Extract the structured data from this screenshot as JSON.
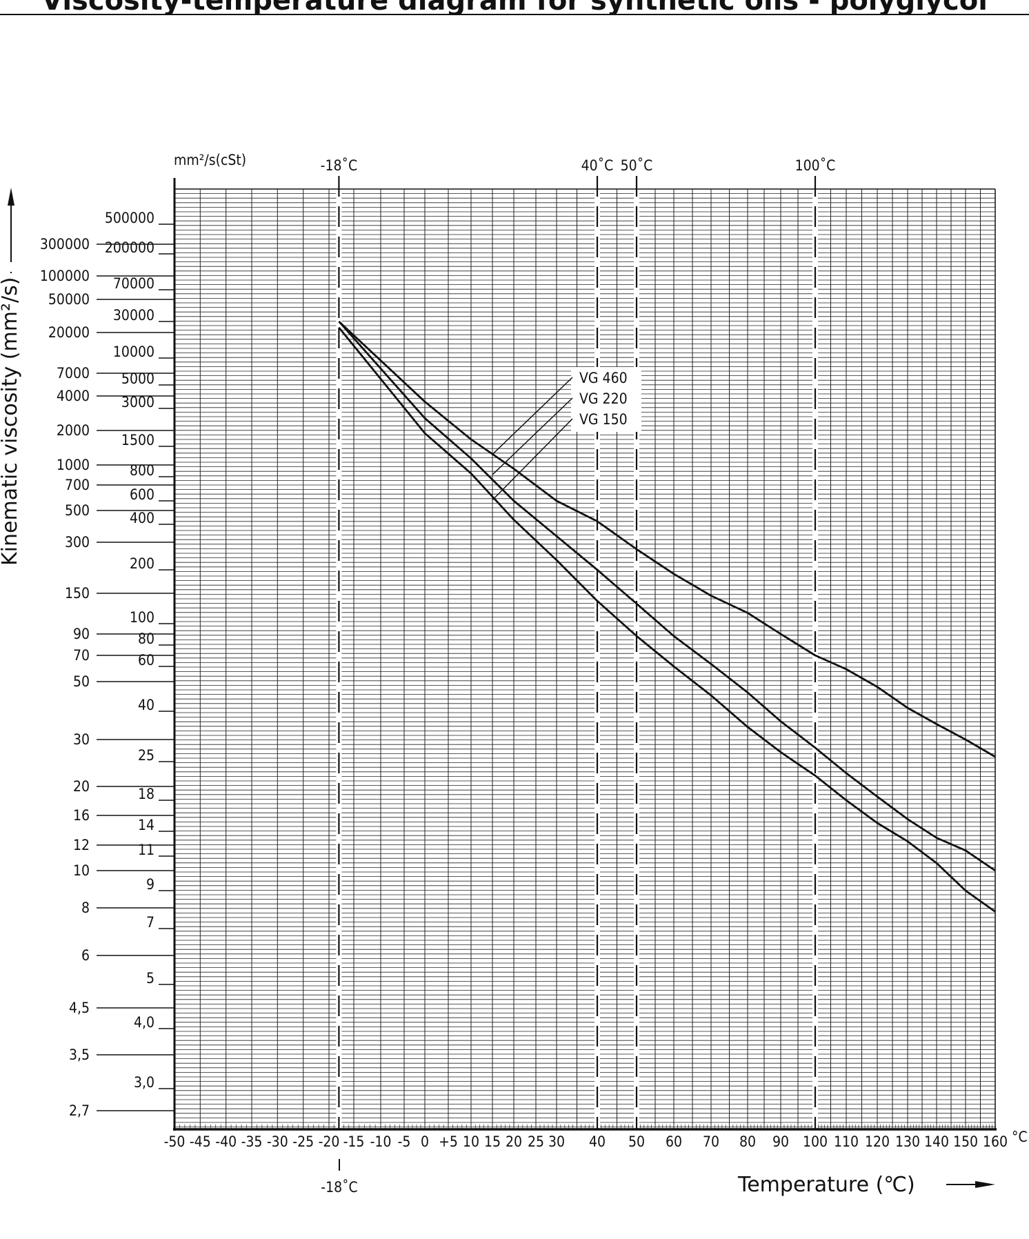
{
  "page_title": "Viscosity-temperature diagram for synthetic oils - polyglycol",
  "chart_data": {
    "type": "line",
    "title": "",
    "xlabel": "Temperature (℃)",
    "ylabel": "Kinematic viscosity (mm²/s)",
    "y_unit_label": "mm²/s(cSt)",
    "x_unit_label": "°C",
    "y_scale": "log-log (Ubbelohde)",
    "xlim": [
      -50,
      160
    ],
    "ylim": [
      2.7,
      1000000
    ],
    "grid": true,
    "x_ticks": [
      -50,
      -45,
      -40,
      -35,
      -30,
      -25,
      -20,
      -15,
      -10,
      -5,
      0,
      5,
      10,
      15,
      20,
      25,
      30,
      40,
      50,
      60,
      70,
      80,
      90,
      100,
      110,
      120,
      130,
      140,
      150,
      160
    ],
    "x_tick_labels": [
      "-50",
      "-45",
      "-40",
      "-35",
      "-30",
      "-25",
      "-20",
      "-15",
      "-10",
      "-5",
      "0",
      "+5",
      "10",
      "15",
      "20",
      "25",
      "30",
      "40",
      "50",
      "60",
      "70",
      "80",
      "90",
      "100",
      "110",
      "120",
      "130",
      "140",
      "150",
      "160"
    ],
    "y_ticks_left": [
      {
        "label": "300000",
        "v": 300000
      },
      {
        "label": "100000",
        "v": 100000
      },
      {
        "label": "50000",
        "v": 50000
      },
      {
        "label": "20000",
        "v": 20000
      },
      {
        "label": "7000",
        "v": 7000
      },
      {
        "label": "4000",
        "v": 4000
      },
      {
        "label": "2000",
        "v": 2000
      },
      {
        "label": "1000",
        "v": 1000
      },
      {
        "label": "700",
        "v": 700
      },
      {
        "label": "500",
        "v": 500
      },
      {
        "label": "300",
        "v": 300
      },
      {
        "label": "150",
        "v": 150
      },
      {
        "label": "90",
        "v": 90
      },
      {
        "label": "70",
        "v": 70
      },
      {
        "label": "50",
        "v": 50
      },
      {
        "label": "30",
        "v": 30
      },
      {
        "label": "20",
        "v": 20
      },
      {
        "label": "16",
        "v": 16
      },
      {
        "label": "12",
        "v": 12
      },
      {
        "label": "10",
        "v": 10
      },
      {
        "label": "8",
        "v": 8
      },
      {
        "label": "6",
        "v": 6
      },
      {
        "label": "4,5",
        "v": 4.5
      },
      {
        "label": "3,5",
        "v": 3.5
      },
      {
        "label": "2,7",
        "v": 2.7
      }
    ],
    "y_ticks_right": [
      {
        "label": "500000",
        "v": 500000
      },
      {
        "label": "200000",
        "v": 200000
      },
      {
        "label": "70000",
        "v": 70000
      },
      {
        "label": "30000",
        "v": 30000
      },
      {
        "label": "10000",
        "v": 10000
      },
      {
        "label": "5000",
        "v": 5000
      },
      {
        "label": "3000",
        "v": 3000
      },
      {
        "label": "1500",
        "v": 1500
      },
      {
        "label": "800",
        "v": 800
      },
      {
        "label": "600",
        "v": 600
      },
      {
        "label": "400",
        "v": 400
      },
      {
        "label": "200",
        "v": 200
      },
      {
        "label": "100",
        "v": 100
      },
      {
        "label": "80",
        "v": 80
      },
      {
        "label": "60",
        "v": 60
      },
      {
        "label": "40",
        "v": 40
      },
      {
        "label": "25",
        "v": 25
      },
      {
        "label": "18",
        "v": 18
      },
      {
        "label": "14",
        "v": 14
      },
      {
        "label": "11",
        "v": 11
      },
      {
        "label": "9",
        "v": 9
      },
      {
        "label": "7",
        "v": 7
      },
      {
        "label": "5",
        "v": 5
      },
      {
        "label": "4,0",
        "v": 4.0
      },
      {
        "label": "3,0",
        "v": 3.0
      }
    ],
    "reference_lines": [
      {
        "x": -18,
        "label": "-18˚C"
      },
      {
        "x": 40,
        "label": "40˚C"
      },
      {
        "x": 50,
        "label": "50˚C"
      },
      {
        "x": 100,
        "label": "100˚C"
      }
    ],
    "bottom_marker_label": "-18˚C",
    "series": [
      {
        "name": "VG 460",
        "points": [
          [
            -18,
            30000
          ],
          [
            0,
            3500
          ],
          [
            10,
            1700
          ],
          [
            20,
            930
          ],
          [
            30,
            600
          ],
          [
            40,
            420
          ],
          [
            50,
            270
          ],
          [
            60,
            190
          ],
          [
            70,
            145
          ],
          [
            80,
            115
          ],
          [
            90,
            90
          ],
          [
            100,
            70
          ],
          [
            110,
            58
          ],
          [
            120,
            48
          ],
          [
            130,
            41
          ],
          [
            140,
            35
          ],
          [
            150,
            30
          ],
          [
            160,
            26
          ]
        ]
      },
      {
        "name": "VG 220",
        "points": [
          [
            -18,
            30000
          ],
          [
            0,
            2500
          ],
          [
            10,
            1150
          ],
          [
            20,
            600
          ],
          [
            30,
            330
          ],
          [
            40,
            200
          ],
          [
            50,
            130
          ],
          [
            60,
            88
          ],
          [
            70,
            62
          ],
          [
            80,
            46
          ],
          [
            90,
            36
          ],
          [
            100,
            28
          ],
          [
            110,
            22.5
          ],
          [
            120,
            18.5
          ],
          [
            130,
            15.5
          ],
          [
            140,
            13
          ],
          [
            150,
            11.5
          ],
          [
            160,
            10
          ]
        ]
      },
      {
        "name": "VG 150",
        "points": [
          [
            -18,
            24000
          ],
          [
            0,
            1900
          ],
          [
            10,
            850
          ],
          [
            20,
            430
          ],
          [
            30,
            230
          ],
          [
            40,
            135
          ],
          [
            50,
            88
          ],
          [
            60,
            60
          ],
          [
            70,
            45
          ],
          [
            80,
            34
          ],
          [
            90,
            27
          ],
          [
            100,
            22
          ],
          [
            110,
            18
          ],
          [
            120,
            15
          ],
          [
            130,
            12.5
          ],
          [
            140,
            10.5
          ],
          [
            150,
            9
          ],
          [
            160,
            7.8
          ]
        ]
      }
    ],
    "legend": [
      {
        "label": "VG 460",
        "target_x": 15,
        "target_series": 0
      },
      {
        "label": "VG 220",
        "target_x": 15,
        "target_series": 1
      },
      {
        "label": "VG 150",
        "target_x": 15,
        "target_series": 2
      }
    ]
  }
}
